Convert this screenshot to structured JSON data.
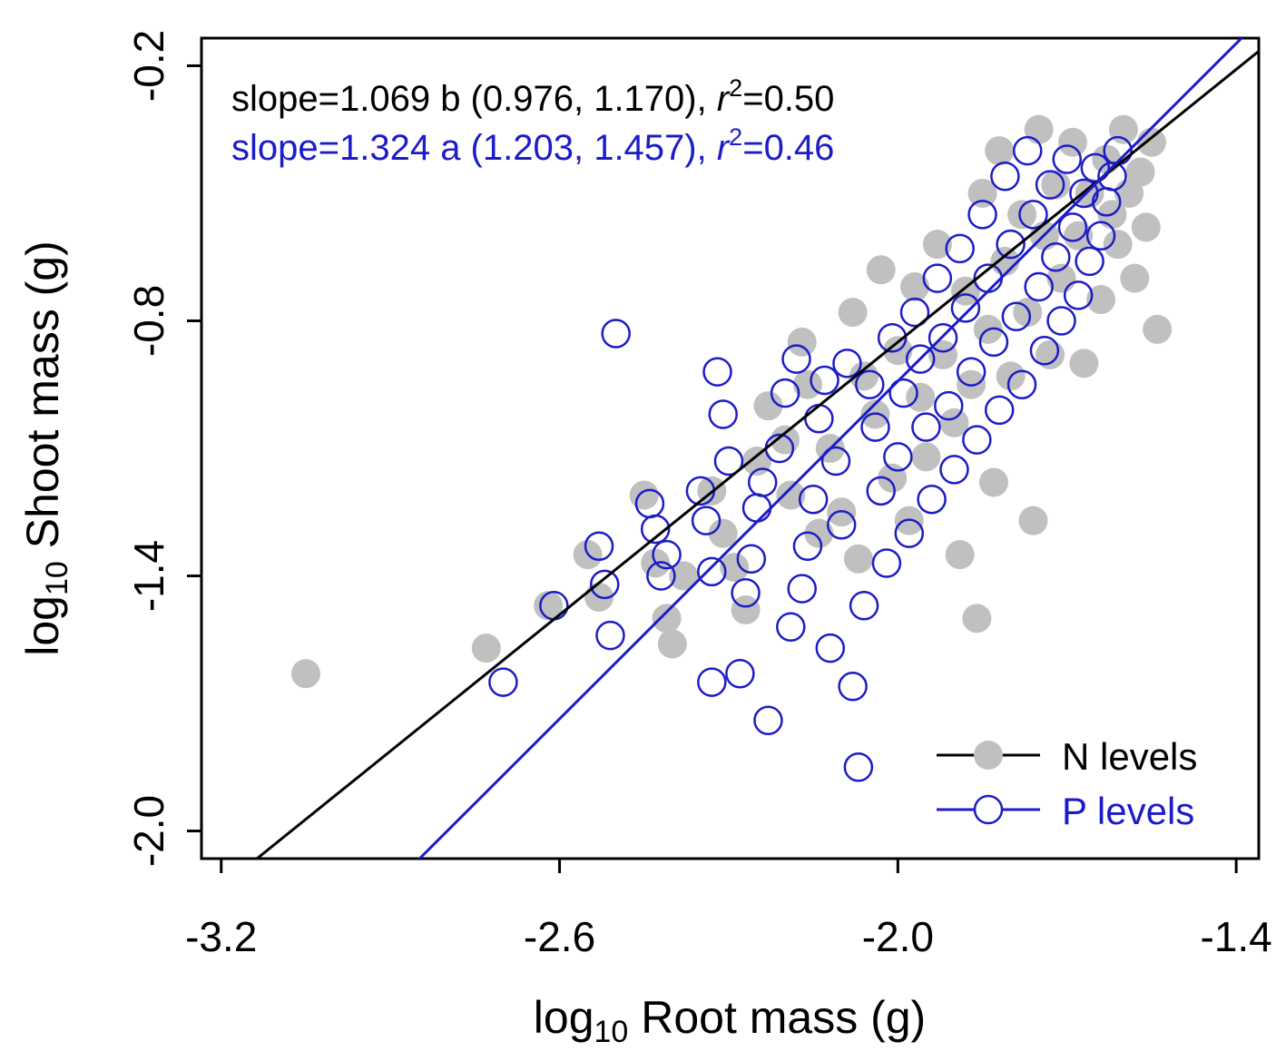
{
  "chart_data": {
    "type": "scatter",
    "xlabel": {
      "prefix": "log",
      "sub": "10",
      "rest": " Root mass (g)"
    },
    "ylabel": {
      "prefix": "log",
      "sub": "10",
      "rest": " Shoot mass (g)"
    },
    "xlim": [
      -3.235,
      -1.36
    ],
    "ylim": [
      -2.065,
      -0.135
    ],
    "x_ticks": [
      -3.2,
      -2.6,
      -2.0,
      -1.4
    ],
    "x_tick_labels": [
      "-3.2",
      "-2.6",
      "-2.0",
      "-1.4"
    ],
    "y_ticks": [
      -2.0,
      -1.4,
      -0.8,
      -0.2
    ],
    "y_tick_labels": [
      "-2.0",
      "-1.4",
      "-0.8",
      "-0.2"
    ],
    "annotations": [
      {
        "parts": [
          "slope=1.069 b (0.976, 1.170), ",
          "r",
          "2",
          "=0.50"
        ],
        "color": "#000000"
      },
      {
        "parts": [
          "slope=1.324 a (1.203, 1.457), ",
          "r",
          "2",
          "=0.46"
        ],
        "color": "#1c1cc8"
      }
    ],
    "legend": {
      "placement": "bottom-right",
      "entries": [
        {
          "label": "N levels",
          "series": "N levels"
        },
        {
          "label": "P levels",
          "series": "P levels"
        }
      ]
    },
    "series": [
      {
        "name": "N levels",
        "marker": "filled-circle",
        "color": "#c0c0c0",
        "line_color": "#000000",
        "fit": {
          "slope": 1.069,
          "intercept": 1.288
        },
        "points": [
          [
            -3.05,
            -1.63
          ],
          [
            -2.73,
            -1.57
          ],
          [
            -2.62,
            -1.47
          ],
          [
            -2.55,
            -1.35
          ],
          [
            -2.53,
            -1.45
          ],
          [
            -2.45,
            -1.21
          ],
          [
            -2.43,
            -1.37
          ],
          [
            -2.41,
            -1.5
          ],
          [
            -2.4,
            -1.56
          ],
          [
            -2.38,
            -1.4
          ],
          [
            -2.33,
            -1.2
          ],
          [
            -2.31,
            -1.3
          ],
          [
            -2.29,
            -1.38
          ],
          [
            -2.27,
            -1.48
          ],
          [
            -2.25,
            -1.13
          ],
          [
            -2.23,
            -1.0
          ],
          [
            -2.2,
            -1.08
          ],
          [
            -2.19,
            -1.21
          ],
          [
            -2.17,
            -0.85
          ],
          [
            -2.16,
            -0.95
          ],
          [
            -2.14,
            -1.3
          ],
          [
            -2.12,
            -1.1
          ],
          [
            -2.1,
            -1.25
          ],
          [
            -2.08,
            -0.78
          ],
          [
            -2.07,
            -1.36
          ],
          [
            -2.06,
            -0.93
          ],
          [
            -2.04,
            -1.02
          ],
          [
            -2.03,
            -0.68
          ],
          [
            -2.01,
            -1.17
          ],
          [
            -2.0,
            -0.87
          ],
          [
            -1.98,
            -1.27
          ],
          [
            -1.97,
            -0.72
          ],
          [
            -1.96,
            -0.98
          ],
          [
            -1.95,
            -1.12
          ],
          [
            -1.93,
            -0.62
          ],
          [
            -1.92,
            -0.88
          ],
          [
            -1.9,
            -1.04
          ],
          [
            -1.89,
            -1.35
          ],
          [
            -1.88,
            -0.73
          ],
          [
            -1.87,
            -0.95
          ],
          [
            -1.86,
            -1.5
          ],
          [
            -1.85,
            -0.5
          ],
          [
            -1.84,
            -0.82
          ],
          [
            -1.83,
            -1.18
          ],
          [
            -1.82,
            -0.4
          ],
          [
            -1.81,
            -0.66
          ],
          [
            -1.8,
            -0.93
          ],
          [
            -1.78,
            -0.55
          ],
          [
            -1.77,
            -0.78
          ],
          [
            -1.76,
            -1.27
          ],
          [
            -1.75,
            -0.35
          ],
          [
            -1.74,
            -0.6
          ],
          [
            -1.73,
            -0.88
          ],
          [
            -1.72,
            -0.48
          ],
          [
            -1.71,
            -0.7
          ],
          [
            -1.69,
            -0.38
          ],
          [
            -1.68,
            -0.6
          ],
          [
            -1.67,
            -0.9
          ],
          [
            -1.66,
            -0.5
          ],
          [
            -1.64,
            -0.75
          ],
          [
            -1.63,
            -0.42
          ],
          [
            -1.62,
            -0.55
          ],
          [
            -1.61,
            -0.62
          ],
          [
            -1.6,
            -0.35
          ],
          [
            -1.59,
            -0.5
          ],
          [
            -1.58,
            -0.7
          ],
          [
            -1.57,
            -0.45
          ],
          [
            -1.56,
            -0.58
          ],
          [
            -1.55,
            -0.38
          ],
          [
            -1.54,
            -0.82
          ]
        ]
      },
      {
        "name": "P levels",
        "marker": "open-circle",
        "color": "#1c1cc8",
        "line_color": "#1c1cc8",
        "fit": {
          "slope": 1.324,
          "intercept": 1.706
        },
        "points": [
          [
            -2.7,
            -1.65
          ],
          [
            -2.61,
            -1.47
          ],
          [
            -2.53,
            -1.33
          ],
          [
            -2.52,
            -1.42
          ],
          [
            -2.51,
            -1.54
          ],
          [
            -2.5,
            -0.83
          ],
          [
            -2.44,
            -1.23
          ],
          [
            -2.43,
            -1.29
          ],
          [
            -2.42,
            -1.4
          ],
          [
            -2.41,
            -1.35
          ],
          [
            -2.35,
            -1.2
          ],
          [
            -2.34,
            -1.27
          ],
          [
            -2.33,
            -1.39
          ],
          [
            -2.33,
            -1.65
          ],
          [
            -2.32,
            -0.92
          ],
          [
            -2.31,
            -1.02
          ],
          [
            -2.3,
            -1.13
          ],
          [
            -2.28,
            -1.63
          ],
          [
            -2.27,
            -1.44
          ],
          [
            -2.26,
            -1.36
          ],
          [
            -2.25,
            -1.24
          ],
          [
            -2.24,
            -1.18
          ],
          [
            -2.23,
            -1.74
          ],
          [
            -2.21,
            -1.1
          ],
          [
            -2.2,
            -0.97
          ],
          [
            -2.19,
            -1.52
          ],
          [
            -2.18,
            -0.89
          ],
          [
            -2.17,
            -1.43
          ],
          [
            -2.16,
            -1.33
          ],
          [
            -2.15,
            -1.22
          ],
          [
            -2.14,
            -1.03
          ],
          [
            -2.13,
            -0.94
          ],
          [
            -2.12,
            -1.57
          ],
          [
            -2.11,
            -1.13
          ],
          [
            -2.1,
            -1.28
          ],
          [
            -2.09,
            -0.9
          ],
          [
            -2.08,
            -1.66
          ],
          [
            -2.07,
            -1.85
          ],
          [
            -2.06,
            -1.47
          ],
          [
            -2.05,
            -0.95
          ],
          [
            -2.04,
            -1.05
          ],
          [
            -2.03,
            -1.2
          ],
          [
            -2.02,
            -1.37
          ],
          [
            -2.01,
            -0.84
          ],
          [
            -2.0,
            -1.12
          ],
          [
            -1.99,
            -0.97
          ],
          [
            -1.98,
            -1.3
          ],
          [
            -1.97,
            -0.78
          ],
          [
            -1.96,
            -0.89
          ],
          [
            -1.95,
            -1.05
          ],
          [
            -1.94,
            -1.22
          ],
          [
            -1.93,
            -0.7
          ],
          [
            -1.92,
            -0.84
          ],
          [
            -1.91,
            -1.0
          ],
          [
            -1.9,
            -1.15
          ],
          [
            -1.89,
            -0.63
          ],
          [
            -1.88,
            -0.77
          ],
          [
            -1.87,
            -0.92
          ],
          [
            -1.86,
            -1.08
          ],
          [
            -1.85,
            -0.55
          ],
          [
            -1.84,
            -0.7
          ],
          [
            -1.83,
            -0.85
          ],
          [
            -1.82,
            -1.01
          ],
          [
            -1.81,
            -0.46
          ],
          [
            -1.8,
            -0.62
          ],
          [
            -1.79,
            -0.79
          ],
          [
            -1.78,
            -0.95
          ],
          [
            -1.77,
            -0.4
          ],
          [
            -1.76,
            -0.55
          ],
          [
            -1.75,
            -0.72
          ],
          [
            -1.74,
            -0.87
          ],
          [
            -1.73,
            -0.48
          ],
          [
            -1.72,
            -0.65
          ],
          [
            -1.71,
            -0.8
          ],
          [
            -1.7,
            -0.42
          ],
          [
            -1.69,
            -0.58
          ],
          [
            -1.68,
            -0.74
          ],
          [
            -1.67,
            -0.5
          ],
          [
            -1.66,
            -0.66
          ],
          [
            -1.65,
            -0.44
          ],
          [
            -1.64,
            -0.6
          ],
          [
            -1.63,
            -0.52
          ],
          [
            -1.62,
            -0.46
          ],
          [
            -1.61,
            -0.4
          ]
        ]
      }
    ]
  }
}
